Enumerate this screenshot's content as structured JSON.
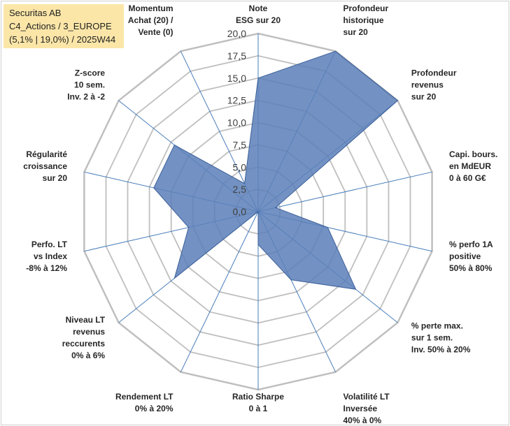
{
  "info": {
    "line1": "Securitas AB",
    "line2": "C4_Actions / 3_EUROPE",
    "line3": "(5,1% | 19,0%) / 2025W44",
    "bg_color": "#fbe6a8"
  },
  "chart_data": {
    "type": "radar",
    "title": "Securitas AB",
    "r_min": 0,
    "r_max": 20,
    "r_step": 2.5,
    "tick_labels": [
      "0,0",
      "2,5",
      "5,0",
      "7,5",
      "10,0",
      "12,5",
      "15,0",
      "17,5",
      "20,0"
    ],
    "axes": [
      [
        "Note",
        "ESG sur 20"
      ],
      [
        "Profondeur",
        "historique",
        "sur 20"
      ],
      [
        "Profondeur",
        "revenus",
        "sur 20"
      ],
      [
        "Capi. bours.",
        "en MdEUR",
        "0 à 60 G€"
      ],
      [
        "% perfo 1A",
        "positive",
        "50% à 80%"
      ],
      [
        "% perte max.",
        "sur 1 sem.",
        "Inv. 50% à 20%"
      ],
      [
        "Volatilité LT",
        "Inversée",
        "40% à 0%"
      ],
      [
        "Ratio Sharpe",
        "0 à 1"
      ],
      [
        "Rendement LT",
        "0% à 20%"
      ],
      [
        "Niveau LT",
        "revenus",
        "reccurents",
        "0% à 6%"
      ],
      [
        "Perfo. LT",
        "vs Index",
        "-8% à 12%"
      ],
      [
        "Régularité",
        "croissance",
        "sur 20"
      ],
      [
        "Z-score",
        "10 sem.",
        "Inv. 2 à -2"
      ],
      [
        "Momentum",
        "Achat (20) /",
        "Vente (0)"
      ]
    ],
    "values": [
      15.0,
      20.0,
      20.0,
      2.0,
      8.0,
      14.0,
      8.5,
      3.7,
      0.0,
      12.0,
      8.0,
      12.0,
      12.0,
      3.5
    ],
    "fill_color": "#5a7fb8",
    "fill_opacity": 0.85,
    "stroke_color": "#3b5f99",
    "grid_color": "#bfbfbf",
    "axis_color": "#4a7ebb"
  }
}
